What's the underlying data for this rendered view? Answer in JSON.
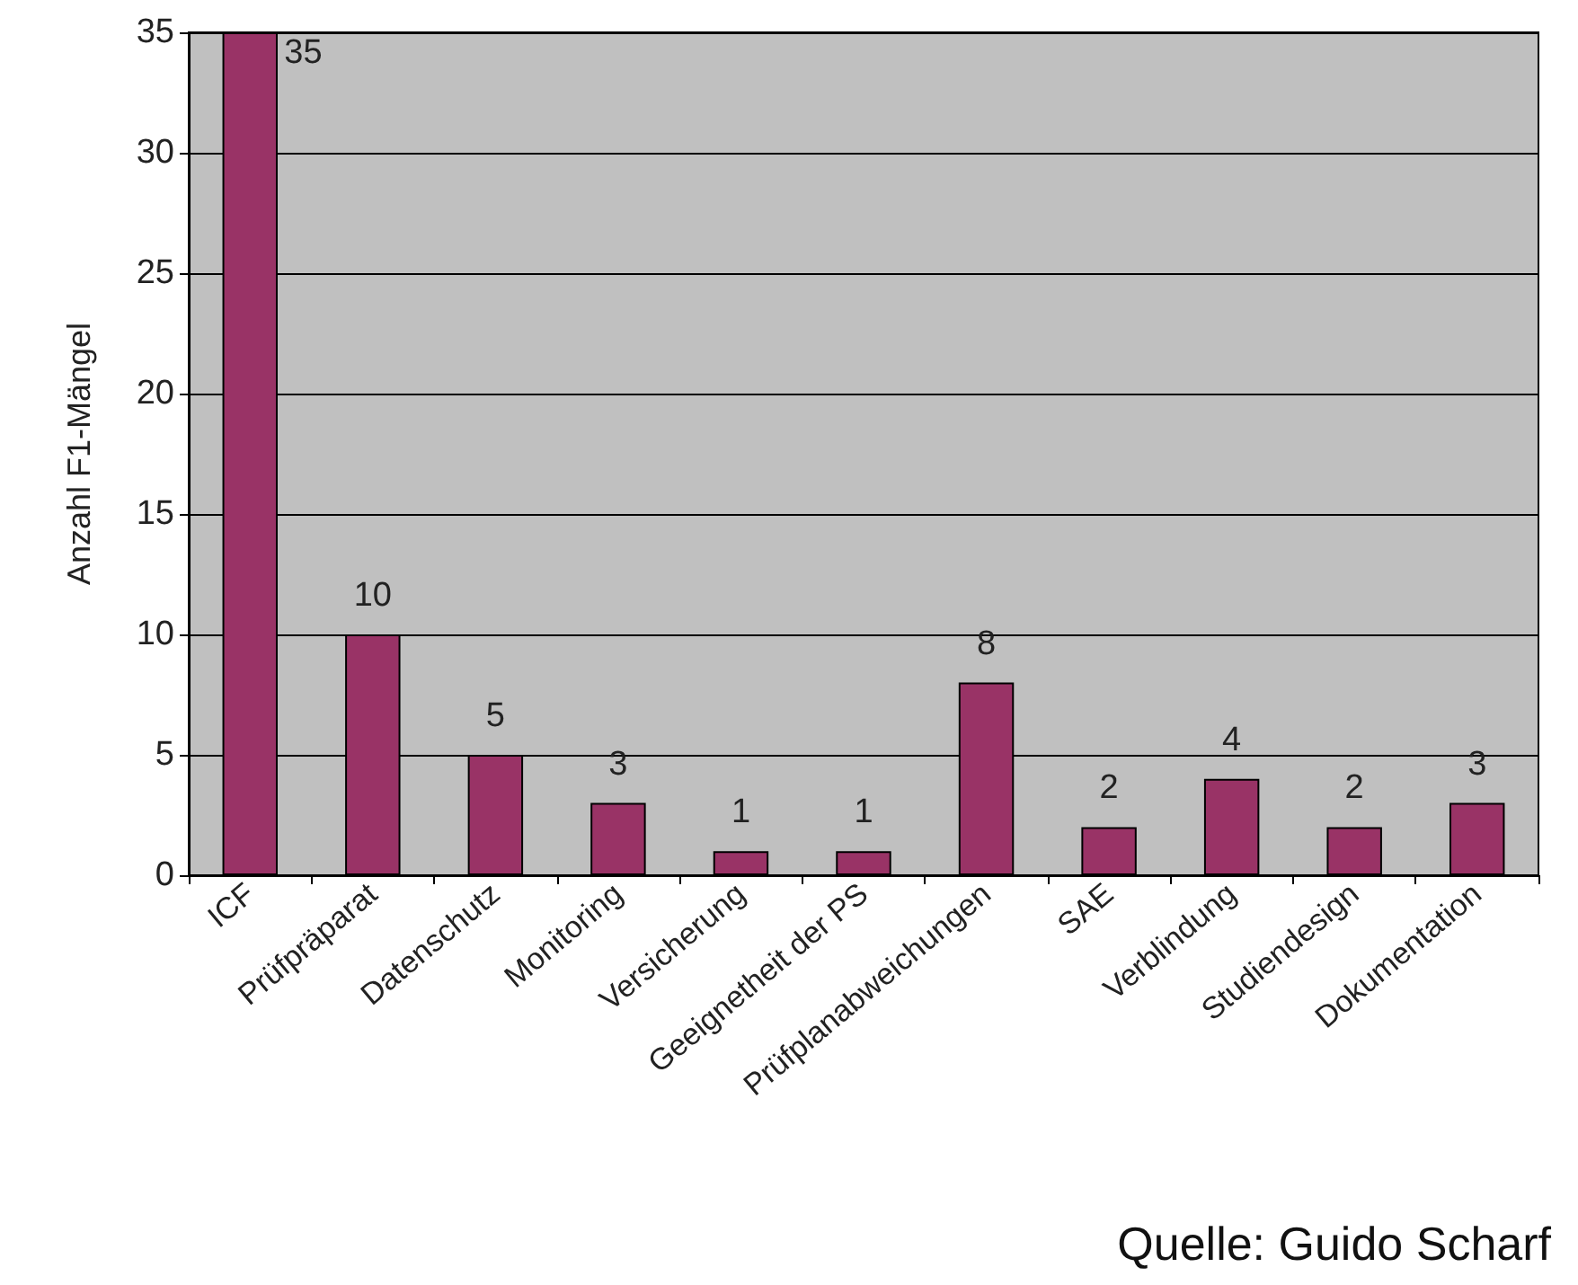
{
  "chart_data": {
    "type": "bar",
    "ylabel": "Anzahl F1-Mängel",
    "categories": [
      "ICF",
      "Prüfpräparat",
      "Datenschutz",
      "Monitoring",
      "Versicherung",
      "Geeignetheit der PS",
      "Prüfplanabweichungen",
      "SAE",
      "Verblindung",
      "Studiendesign",
      "Dokumentation"
    ],
    "values": [
      35,
      10,
      5,
      3,
      1,
      1,
      8,
      2,
      4,
      2,
      3
    ],
    "color": "#993366",
    "ylim": [
      0,
      35
    ],
    "yticks": [
      0,
      5,
      10,
      15,
      20,
      25,
      30,
      35
    ],
    "grid": "y",
    "data_labels": true,
    "annotations": [
      "Quelle: Guido Scharf"
    ]
  }
}
